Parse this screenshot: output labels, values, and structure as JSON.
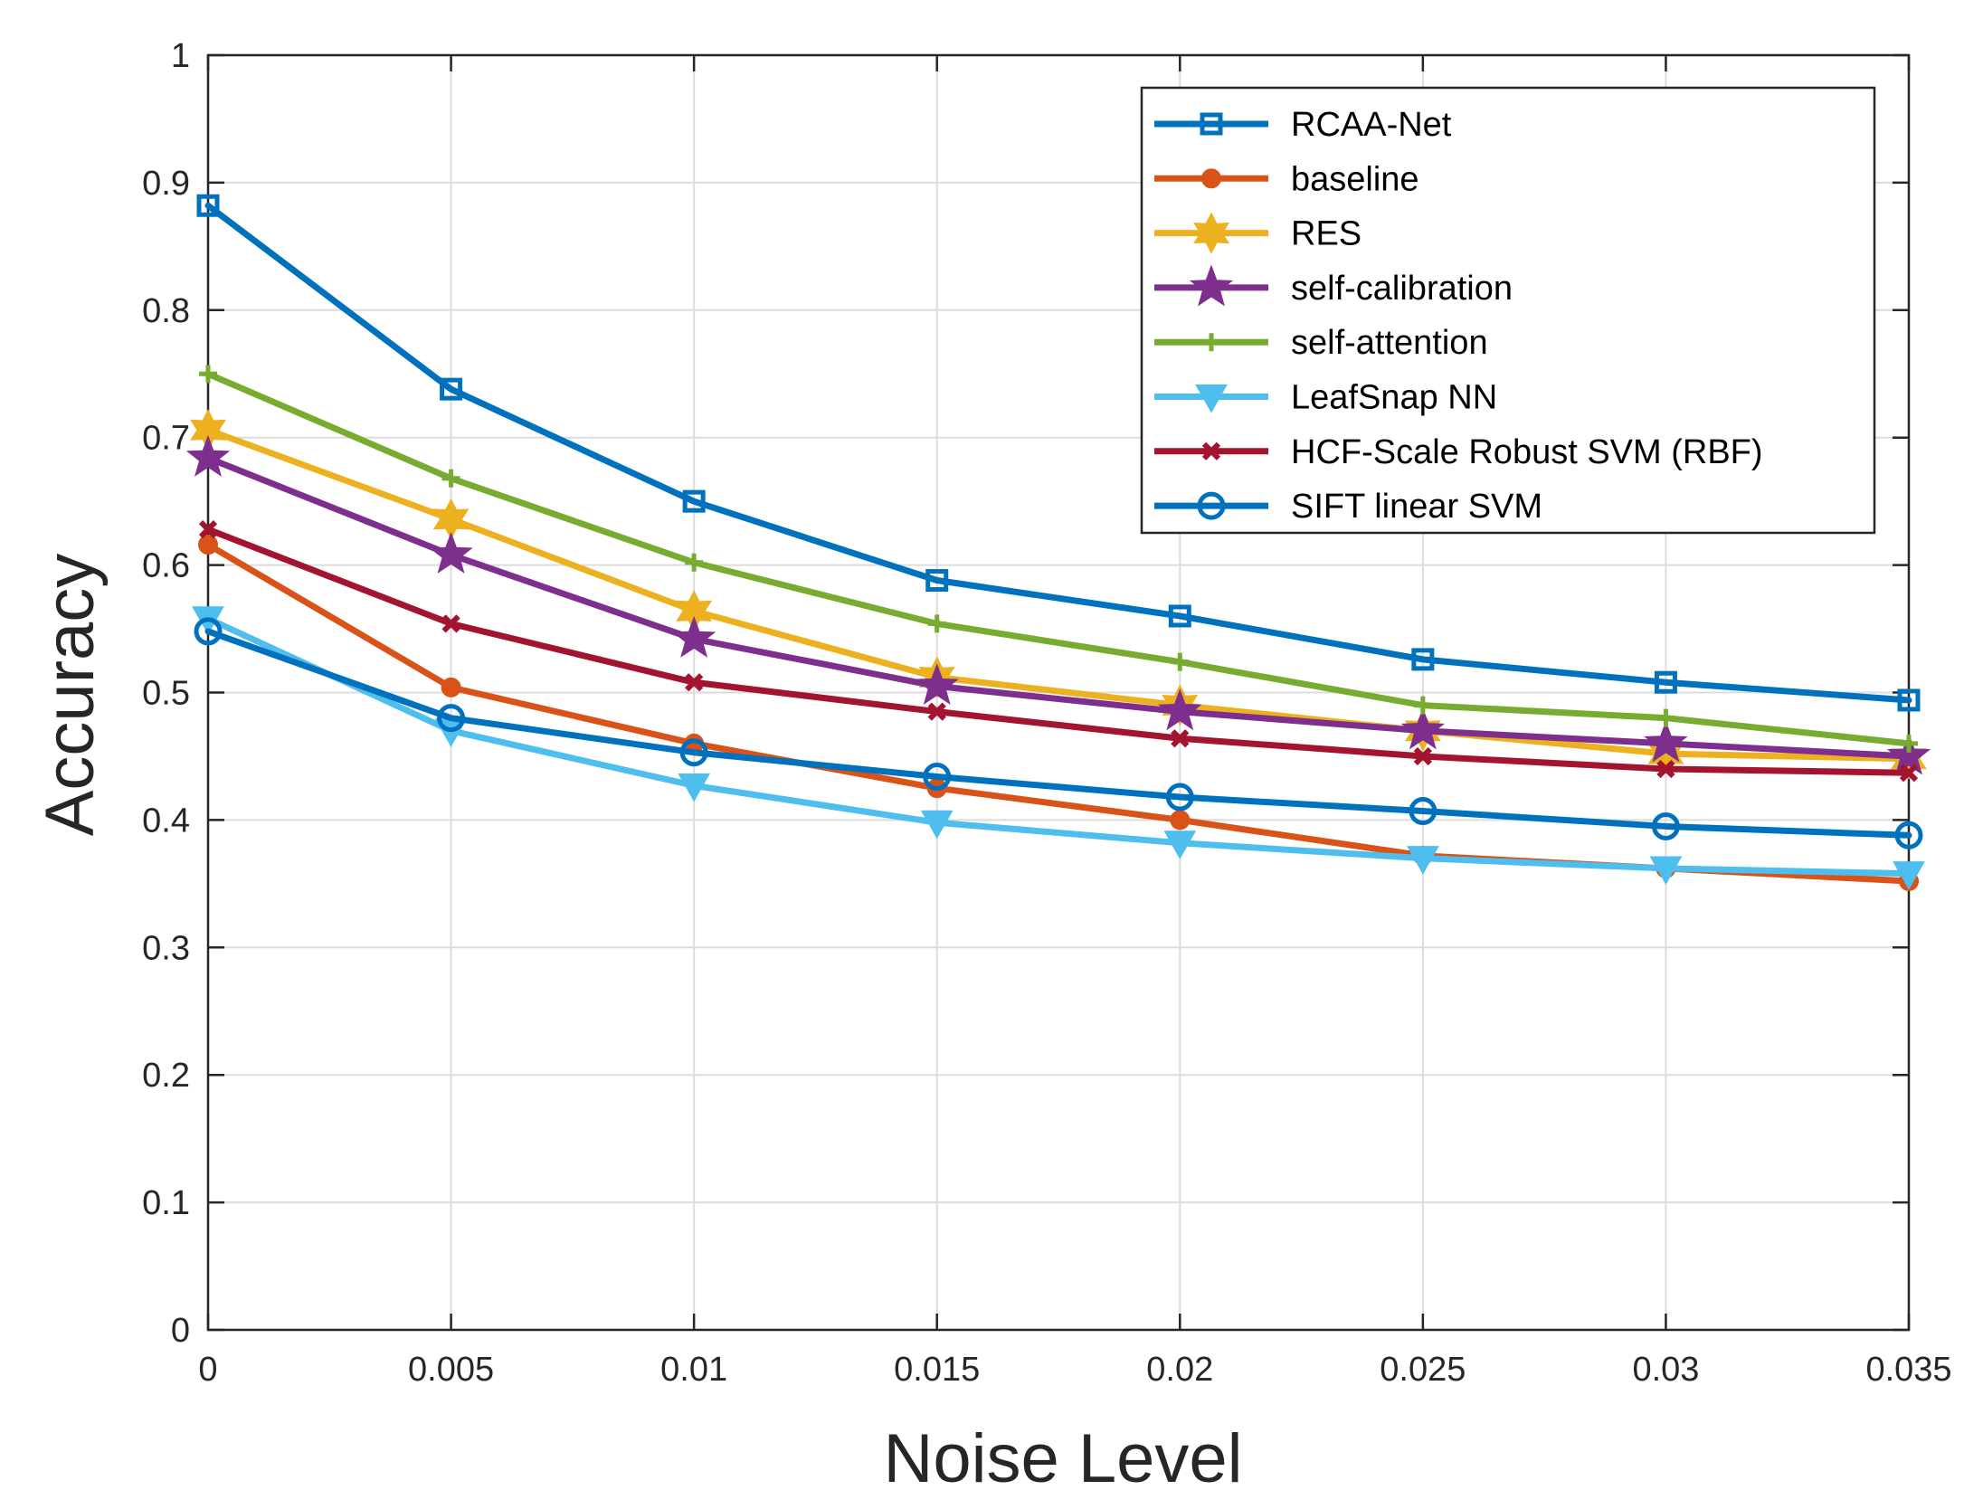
{
  "chart_data": {
    "type": "line",
    "xlabel": "Noise Level",
    "ylabel": "Accuracy",
    "x": [
      0,
      0.005,
      0.01,
      0.015,
      0.02,
      0.025,
      0.03,
      0.035
    ],
    "x_tick_labels": [
      "0",
      "0.005",
      "0.01",
      "0.015",
      "0.02",
      "0.025",
      "0.03",
      "0.035"
    ],
    "y_tick_labels": [
      "0",
      "0.1",
      "0.2",
      "0.3",
      "0.4",
      "0.5",
      "0.6",
      "0.7",
      "0.8",
      "0.9",
      "1"
    ],
    "xlim": [
      0,
      0.035
    ],
    "ylim": [
      0,
      1
    ],
    "grid": true,
    "legend_location": "top-right",
    "series": [
      {
        "name": "RCAA-Net",
        "color": "#0072BD",
        "marker": "square",
        "values": [
          0.882,
          0.738,
          0.65,
          0.588,
          0.56,
          0.526,
          0.508,
          0.494
        ]
      },
      {
        "name": "baseline",
        "color": "#D95319",
        "marker": "circle-filled",
        "values": [
          0.616,
          0.504,
          0.46,
          0.425,
          0.4,
          0.372,
          0.362,
          0.352
        ]
      },
      {
        "name": "RES",
        "color": "#EDB120",
        "marker": "hexagram",
        "values": [
          0.706,
          0.636,
          0.564,
          0.512,
          0.49,
          0.47,
          0.452,
          0.448
        ]
      },
      {
        "name": "self-calibration",
        "color": "#7E2F8E",
        "marker": "pentagram",
        "values": [
          0.684,
          0.608,
          0.542,
          0.505,
          0.485,
          0.47,
          0.46,
          0.45
        ]
      },
      {
        "name": "self-attention",
        "color": "#77AC30",
        "marker": "plus",
        "values": [
          0.75,
          0.668,
          0.602,
          0.554,
          0.524,
          0.49,
          0.48,
          0.46
        ]
      },
      {
        "name": "LeafSnap NN",
        "color": "#4DBEEE",
        "marker": "triangle-down",
        "values": [
          0.558,
          0.47,
          0.427,
          0.398,
          0.382,
          0.37,
          0.362,
          0.358
        ]
      },
      {
        "name": "HCF-Scale Robust SVM (RBF)",
        "color": "#A2142F",
        "marker": "x",
        "values": [
          0.628,
          0.554,
          0.508,
          0.485,
          0.464,
          0.45,
          0.44,
          0.437
        ]
      },
      {
        "name": "SIFT linear SVM",
        "color": "#0072BD",
        "marker": "circle-open",
        "values": [
          0.548,
          0.48,
          0.453,
          0.434,
          0.418,
          0.407,
          0.395,
          0.388
        ]
      }
    ]
  }
}
